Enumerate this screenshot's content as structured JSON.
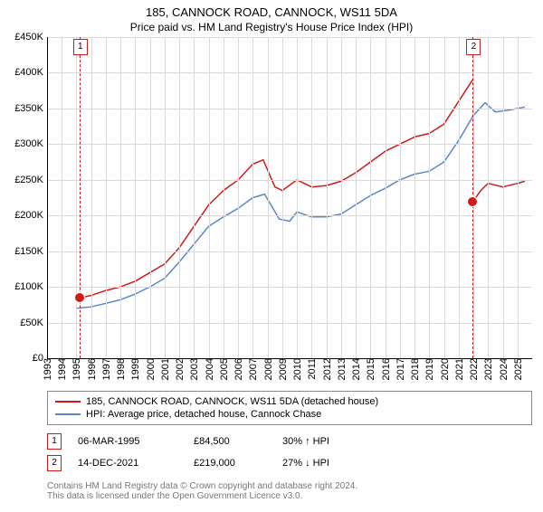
{
  "title": "185, CANNOCK ROAD, CANNOCK, WS11 5DA",
  "subtitle": "Price paid vs. HM Land Registry's House Price Index (HPI)",
  "chart": {
    "type": "line",
    "background_color": "#ffffff",
    "grid_color": "#d9d9d9",
    "axis_color": "#000000",
    "y": {
      "min": 0,
      "max": 450000,
      "step": 50000,
      "labels": [
        "£0",
        "£50K",
        "£100K",
        "£150K",
        "£200K",
        "£250K",
        "£300K",
        "£350K",
        "£400K",
        "£450K"
      ]
    },
    "x": {
      "min": 1993,
      "max": 2026,
      "labels": [
        "1993",
        "1994",
        "1995",
        "1996",
        "1997",
        "1998",
        "1999",
        "2000",
        "2001",
        "2002",
        "2003",
        "2004",
        "2005",
        "2006",
        "2007",
        "2008",
        "2009",
        "2010",
        "2011",
        "2012",
        "2013",
        "2014",
        "2015",
        "2016",
        "2017",
        "2018",
        "2019",
        "2020",
        "2021",
        "2022",
        "2023",
        "2024",
        "2025"
      ]
    },
    "series": [
      {
        "name": "property",
        "label": "185, CANNOCK ROAD, CANNOCK, WS11 5DA (detached house)",
        "color": "#d11919",
        "line_width": 1.5,
        "points": [
          [
            1995.2,
            84500
          ],
          [
            1996,
            88000
          ],
          [
            1997,
            95000
          ],
          [
            1998,
            100000
          ],
          [
            1999,
            108000
          ],
          [
            2000,
            120000
          ],
          [
            2001,
            132000
          ],
          [
            2002,
            155000
          ],
          [
            2003,
            185000
          ],
          [
            2004,
            215000
          ],
          [
            2005,
            235000
          ],
          [
            2006,
            250000
          ],
          [
            2007,
            272000
          ],
          [
            2007.7,
            278000
          ],
          [
            2008.5,
            240000
          ],
          [
            2009,
            235000
          ],
          [
            2010,
            250000
          ],
          [
            2011,
            240000
          ],
          [
            2012,
            242000
          ],
          [
            2013,
            248000
          ],
          [
            2014,
            260000
          ],
          [
            2015,
            275000
          ],
          [
            2016,
            290000
          ],
          [
            2017,
            300000
          ],
          [
            2018,
            310000
          ],
          [
            2019,
            315000
          ],
          [
            2020,
            328000
          ],
          [
            2021,
            360000
          ],
          [
            2021.95,
            390000
          ]
        ]
      },
      {
        "name": "property_after",
        "label": "",
        "color": "#d11919",
        "line_width": 1.5,
        "points": [
          [
            2021.96,
            219000
          ],
          [
            2022.5,
            235000
          ],
          [
            2023,
            245000
          ],
          [
            2024,
            240000
          ],
          [
            2025,
            245000
          ],
          [
            2025.5,
            248000
          ]
        ]
      },
      {
        "name": "hpi",
        "label": "HPI: Average price, detached house, Cannock Chase",
        "color": "#5b87c7",
        "line_width": 1.5,
        "points": [
          [
            1995,
            70000
          ],
          [
            1996,
            72000
          ],
          [
            1997,
            77000
          ],
          [
            1998,
            82000
          ],
          [
            1999,
            90000
          ],
          [
            2000,
            100000
          ],
          [
            2001,
            112000
          ],
          [
            2002,
            135000
          ],
          [
            2003,
            160000
          ],
          [
            2004,
            185000
          ],
          [
            2005,
            198000
          ],
          [
            2006,
            210000
          ],
          [
            2007,
            225000
          ],
          [
            2007.8,
            230000
          ],
          [
            2008.8,
            195000
          ],
          [
            2009.5,
            192000
          ],
          [
            2010,
            205000
          ],
          [
            2011,
            198000
          ],
          [
            2012,
            198000
          ],
          [
            2013,
            202000
          ],
          [
            2014,
            215000
          ],
          [
            2015,
            228000
          ],
          [
            2016,
            238000
          ],
          [
            2017,
            250000
          ],
          [
            2018,
            258000
          ],
          [
            2019,
            262000
          ],
          [
            2020,
            275000
          ],
          [
            2021,
            305000
          ],
          [
            2022,
            340000
          ],
          [
            2022.8,
            358000
          ],
          [
            2023.5,
            345000
          ],
          [
            2024.5,
            348000
          ],
          [
            2025.5,
            352000
          ]
        ]
      }
    ],
    "markers": [
      {
        "id": "1",
        "year": 1995.2,
        "value": 84500,
        "box_color": "#d11919",
        "vline": true
      },
      {
        "id": "2",
        "year": 2021.96,
        "value": 219000,
        "box_color": "#d11919",
        "vline": true
      }
    ]
  },
  "legend": [
    {
      "color": "#d11919",
      "label": "185, CANNOCK ROAD, CANNOCK, WS11 5DA (detached house)"
    },
    {
      "color": "#5b87c7",
      "label": "HPI: Average price, detached house, Cannock Chase"
    }
  ],
  "sales": [
    {
      "badge": "1",
      "badge_color": "#d11919",
      "date": "06-MAR-1995",
      "price": "£84,500",
      "pct": "30% ↑ HPI"
    },
    {
      "badge": "2",
      "badge_color": "#d11919",
      "date": "14-DEC-2021",
      "price": "£219,000",
      "pct": "27% ↓ HPI"
    }
  ],
  "footer_line1": "Contains HM Land Registry data © Crown copyright and database right 2024.",
  "footer_line2": "This data is licensed under the Open Government Licence v3.0."
}
